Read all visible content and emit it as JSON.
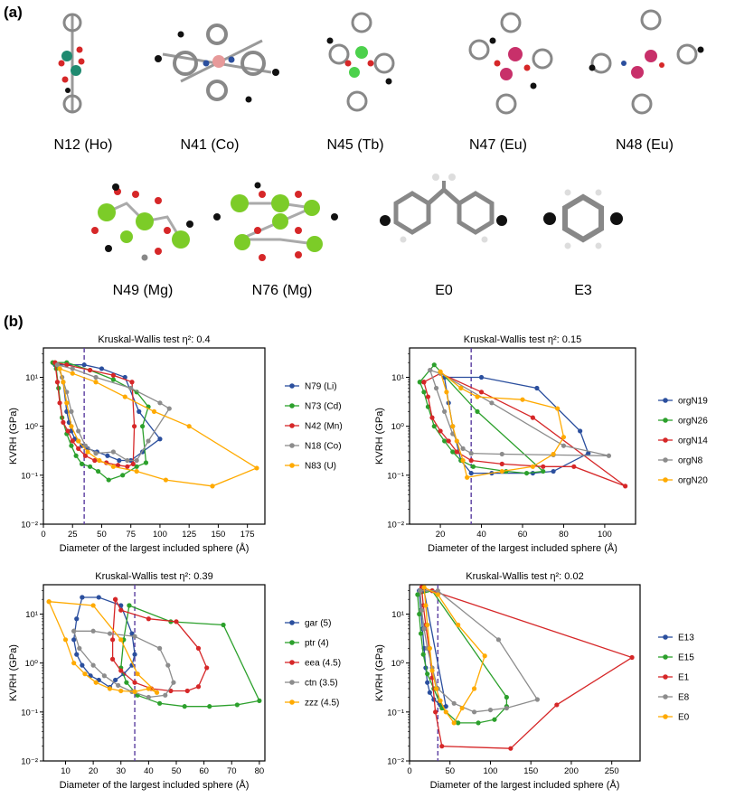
{
  "panels": {
    "a": "(a)",
    "b": "(b)"
  },
  "molecules": [
    {
      "label": "N12 (Ho)",
      "metal_color": "#1f8a70"
    },
    {
      "label": "N41 (Co)",
      "metal_color": "#e79a9a"
    },
    {
      "label": "N45 (Tb)",
      "metal_color": "#4cd14c"
    },
    {
      "label": "N47 (Eu)",
      "metal_color": "#c8306a"
    },
    {
      "label": "N48 (Eu)",
      "metal_color": "#c8306a"
    },
    {
      "label": "N49 (Mg)",
      "metal_color": "#7ccc28"
    },
    {
      "label": "N76 (Mg)",
      "metal_color": "#7ccc28"
    },
    {
      "label": "E0",
      "metal_color": "#888888"
    },
    {
      "label": "E3",
      "metal_color": "#888888"
    }
  ],
  "chart_data": [
    {
      "type": "line",
      "title": "Kruskal-Wallis test η²: 0.4",
      "xlabel": "Diameter of the largest included sphere (Å)",
      "ylabel": "KVRH (GPa)",
      "xlim": [
        0,
        190
      ],
      "xticks": [
        0,
        25,
        50,
        75,
        100,
        125,
        150,
        175
      ],
      "ylim_log": [
        -2,
        1.6
      ],
      "yticks": [
        "10⁻²",
        "10⁻¹",
        "10⁰",
        "10¹"
      ],
      "vline": 35,
      "series": [
        {
          "name": "N79 (Li)",
          "color": "#2b4f9e",
          "x": [
            10,
            14,
            17,
            20,
            22,
            24,
            27,
            30,
            33,
            38,
            46,
            55,
            65,
            75,
            85,
            100,
            82,
            70,
            50,
            35,
            10
          ],
          "y": [
            18,
            15,
            8,
            2,
            1.2,
            0.8,
            0.55,
            0.5,
            0.4,
            0.35,
            0.3,
            0.25,
            0.2,
            0.2,
            0.3,
            0.55,
            2,
            10,
            15,
            18,
            18
          ]
        },
        {
          "name": "N73 (Cd)",
          "color": "#2ca02c",
          "x": [
            8,
            11,
            13,
            16,
            20,
            24,
            28,
            33,
            40,
            47,
            56,
            68,
            80,
            88,
            85,
            90,
            80,
            60,
            40,
            20,
            8
          ],
          "y": [
            20,
            15,
            6,
            1.5,
            0.7,
            0.4,
            0.25,
            0.17,
            0.15,
            0.12,
            0.08,
            0.1,
            0.15,
            0.18,
            1,
            2.5,
            5,
            9,
            14,
            20,
            20
          ]
        },
        {
          "name": "N42 (Mn)",
          "color": "#d62728",
          "x": [
            10,
            12,
            14,
            17,
            21,
            25,
            30,
            36,
            44,
            54,
            64,
            72,
            77,
            78,
            76,
            60,
            40,
            20,
            10
          ],
          "y": [
            20,
            8,
            3,
            1.2,
            0.8,
            0.5,
            0.35,
            0.25,
            0.2,
            0.18,
            0.16,
            0.15,
            0.17,
            1,
            8,
            11,
            14,
            18,
            20
          ]
        },
        {
          "name": "N18 (Co)",
          "color": "#8c8c8c",
          "x": [
            12,
            16,
            20,
            24,
            30,
            36,
            45,
            60,
            72,
            80,
            90,
            108,
            100,
            75,
            45,
            25,
            12
          ],
          "y": [
            18,
            10,
            5,
            2,
            0.8,
            0.4,
            0.28,
            0.3,
            0.2,
            0.2,
            0.5,
            2.3,
            3,
            6,
            10,
            15,
            18
          ]
        },
        {
          "name": "N83 (U)",
          "color": "#ffaa00",
          "x": [
            14,
            17,
            20,
            24,
            30,
            38,
            48,
            60,
            80,
            105,
            145,
            183,
            125,
            95,
            70,
            45,
            25,
            14
          ],
          "y": [
            15,
            8,
            3,
            1,
            0.5,
            0.3,
            0.2,
            0.15,
            0.12,
            0.08,
            0.06,
            0.14,
            1,
            2,
            4,
            8,
            12,
            15
          ]
        }
      ]
    },
    {
      "type": "line",
      "title": "Kruskal-Wallis test η²: 0.15",
      "xlabel": "Diameter of the largest included sphere (Å)",
      "ylabel": "KVRH (GPa)",
      "xlim": [
        5,
        115
      ],
      "xticks": [
        20,
        40,
        60,
        80,
        100
      ],
      "ylim_log": [
        -2,
        1.6
      ],
      "yticks": [
        "10⁻²",
        "10⁻¹",
        "10⁰",
        "10¹"
      ],
      "vline": 35,
      "series": [
        {
          "name": "orgN19",
          "color": "#2b4f9e",
          "x": [
            22,
            24,
            26,
            30,
            35,
            45,
            65,
            75,
            92,
            88,
            67,
            40,
            22
          ],
          "y": [
            10,
            3,
            1,
            0.2,
            0.11,
            0.11,
            0.11,
            0.12,
            0.28,
            0.8,
            6,
            10,
            10
          ]
        },
        {
          "name": "orgN26",
          "color": "#2ca02c",
          "x": [
            10,
            12,
            14,
            17,
            22,
            26,
            30,
            36,
            52,
            62,
            70,
            38,
            17,
            10
          ],
          "y": [
            8,
            5,
            2.5,
            1,
            0.5,
            0.3,
            0.2,
            0.15,
            0.12,
            0.11,
            0.12,
            2,
            18,
            8
          ]
        },
        {
          "name": "orgN14",
          "color": "#d62728",
          "x": [
            12,
            14,
            16,
            20,
            24,
            28,
            35,
            50,
            70,
            85,
            110,
            65,
            40,
            20,
            12
          ],
          "y": [
            8,
            4,
            1.5,
            0.8,
            0.5,
            0.3,
            0.2,
            0.17,
            0.15,
            0.15,
            0.06,
            1.5,
            5,
            12,
            8
          ]
        },
        {
          "name": "orgN8",
          "color": "#8c8c8c",
          "x": [
            15,
            18,
            22,
            26,
            31,
            35,
            50,
            75,
            102,
            80,
            45,
            20,
            15
          ],
          "y": [
            14,
            6,
            2,
            0.7,
            0.35,
            0.28,
            0.27,
            0.26,
            0.25,
            0.4,
            3,
            12,
            14
          ]
        },
        {
          "name": "orgN20",
          "color": "#ffaa00",
          "x": [
            20,
            23,
            26,
            28,
            31,
            33,
            50,
            65,
            75,
            80,
            77,
            60,
            38,
            30,
            20
          ],
          "y": [
            13,
            5,
            1,
            0.5,
            0.2,
            0.09,
            0.12,
            0.15,
            0.27,
            0.6,
            2.3,
            3.5,
            4,
            6,
            13
          ]
        }
      ]
    },
    {
      "type": "line",
      "title": "Kruskal-Wallis test η²: 0.39",
      "xlabel": "Diameter of the largest included sphere (Å)",
      "ylabel": "KVRH (GPa)",
      "xlim": [
        2,
        82
      ],
      "xticks": [
        10,
        20,
        30,
        40,
        50,
        60,
        70,
        80
      ],
      "ylim_log": [
        -2,
        1.6
      ],
      "yticks": [
        "10⁻²",
        "10⁻¹",
        "10⁰",
        "10¹"
      ],
      "vline": 35,
      "series": [
        {
          "name": "gar (5)",
          "color": "#2b4f9e",
          "x": [
            16,
            14,
            13,
            14,
            16,
            19,
            22,
            26,
            28,
            31,
            34,
            35,
            34,
            30,
            22,
            16
          ],
          "y": [
            22,
            8,
            3,
            1.5,
            0.9,
            0.55,
            0.45,
            0.32,
            0.45,
            0.6,
            0.9,
            1.5,
            4,
            15,
            22,
            22
          ]
        },
        {
          "name": "ptr (4)",
          "color": "#2ca02c",
          "x": [
            33,
            31,
            30,
            32,
            36,
            44,
            53,
            62,
            72,
            80,
            67,
            48,
            33
          ],
          "y": [
            15,
            3,
            0.8,
            0.4,
            0.22,
            0.15,
            0.13,
            0.13,
            0.14,
            0.17,
            6,
            7,
            15
          ]
        },
        {
          "name": "eea (4.5)",
          "color": "#d62728",
          "x": [
            28,
            27,
            27,
            30,
            35,
            41,
            48,
            54,
            58,
            61,
            58,
            50,
            40,
            30,
            28
          ],
          "y": [
            20,
            3,
            1.2,
            0.7,
            0.4,
            0.3,
            0.27,
            0.27,
            0.33,
            0.8,
            2,
            7,
            8,
            12,
            20
          ]
        },
        {
          "name": "ctn (3.5)",
          "color": "#8c8c8c",
          "x": [
            13,
            15,
            20,
            24,
            29,
            34,
            40,
            46,
            49,
            47,
            44,
            35,
            26,
            20,
            13
          ],
          "y": [
            4.5,
            2,
            0.9,
            0.55,
            0.35,
            0.26,
            0.2,
            0.22,
            0.4,
            0.9,
            2,
            3.5,
            4,
            4.5,
            4.5
          ]
        },
        {
          "name": "zzz (4.5)",
          "color": "#ffaa00",
          "x": [
            4,
            10,
            13,
            17,
            21,
            26,
            30,
            35,
            40,
            43,
            36,
            30,
            20,
            4
          ],
          "y": [
            18,
            3,
            1,
            0.6,
            0.4,
            0.3,
            0.27,
            0.26,
            0.3,
            0.25,
            0.6,
            3,
            15,
            18
          ]
        }
      ]
    },
    {
      "type": "line",
      "title": "Kruskal-Wallis test η²: 0.02",
      "xlabel": "Diameter of the largest included sphere (Å)",
      "ylabel": "KVRH (GPa)",
      "xlim": [
        0,
        285
      ],
      "xticks": [
        0,
        50,
        100,
        150,
        200,
        250
      ],
      "ylim_log": [
        -2,
        1.6
      ],
      "yticks": [
        "10⁻²",
        "10⁻¹",
        "10⁰",
        "10¹"
      ],
      "vline": 35,
      "series": [
        {
          "name": "E13",
          "color": "#2b4f9e",
          "x": [
            12,
            14,
            16,
            18,
            20,
            22,
            25,
            30,
            38,
            45,
            18,
            12
          ],
          "y": [
            30,
            12,
            5,
            2,
            0.8,
            0.4,
            0.25,
            0.18,
            0.14,
            0.13,
            30,
            30
          ]
        },
        {
          "name": "E15",
          "color": "#2ca02c",
          "x": [
            10,
            12,
            14,
            17,
            22,
            30,
            40,
            60,
            85,
            105,
            120,
            120,
            28,
            10
          ],
          "y": [
            25,
            10,
            4,
            1.5,
            0.6,
            0.3,
            0.12,
            0.06,
            0.06,
            0.07,
            0.13,
            0.2,
            30,
            25
          ]
        },
        {
          "name": "E1",
          "color": "#d62728",
          "x": [
            15,
            17,
            20,
            24,
            28,
            32,
            40,
            125,
            182,
            275,
            28,
            15
          ],
          "y": [
            35,
            15,
            6,
            2,
            0.5,
            0.1,
            0.02,
            0.018,
            0.14,
            1.3,
            30,
            35
          ]
        },
        {
          "name": "E8",
          "color": "#8c8c8c",
          "x": [
            13,
            15,
            18,
            22,
            28,
            35,
            55,
            80,
            100,
            120,
            158,
            110,
            35,
            13
          ],
          "y": [
            30,
            12,
            5,
            2,
            0.8,
            0.3,
            0.15,
            0.1,
            0.11,
            0.12,
            0.18,
            3,
            30,
            30
          ]
        },
        {
          "name": "E0",
          "color": "#ffaa00",
          "x": [
            18,
            20,
            22,
            25,
            28,
            33,
            38,
            45,
            55,
            65,
            80,
            93,
            60,
            35,
            18
          ],
          "y": [
            35,
            15,
            6,
            2,
            0.7,
            0.3,
            0.17,
            0.1,
            0.06,
            0.12,
            0.3,
            1.4,
            6,
            25,
            35
          ]
        }
      ]
    }
  ]
}
